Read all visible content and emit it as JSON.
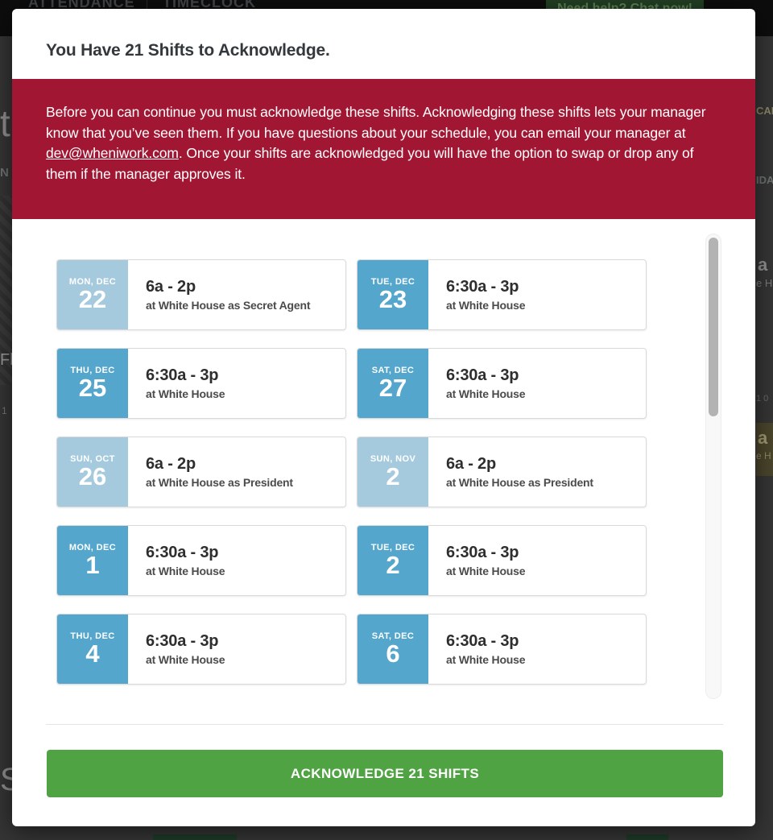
{
  "background": {
    "topbar": {
      "tabs": [
        {
          "label": "ATTENDANCE"
        },
        {
          "label": "TIMECLOCK"
        }
      ],
      "chat_button_label": "Need help? Chat now!",
      "chat_icon": "chat-bubble-icon"
    },
    "fragments": {
      "left_t": "t",
      "left_n": "N",
      "left_fl": "Fl",
      "left_1": "1",
      "left_s": "S",
      "right_cal": "CAL",
      "right_ida": "IDA",
      "right_a1": "a",
      "right_eh1": "e H",
      "right_10": "1 0",
      "right_a2": "a",
      "right_eh2": "e H"
    }
  },
  "modal": {
    "title": "You Have 21 Shifts to Acknowledge.",
    "notice": {
      "text_before_link": "Before you can continue you must acknowledge these shifts. Acknowledging these shifts lets your manager know that you’ve seen them. If you have questions about your schedule, you can email your manager at ",
      "link": "dev@wheniwork.com",
      "text_after_link": ". Once your shifts are acknowledged you will have the option to swap or drop any of them if the manager approves it."
    },
    "shifts": [
      {
        "day": "MON, DEC",
        "date": "22",
        "time": "6a - 2p",
        "location": "at White House as Secret Agent",
        "tone": "light"
      },
      {
        "day": "TUE, DEC",
        "date": "23",
        "time": "6:30a - 3p",
        "location": "at White House",
        "tone": "dark"
      },
      {
        "day": "THU, DEC",
        "date": "25",
        "time": "6:30a - 3p",
        "location": "at White House",
        "tone": "dark"
      },
      {
        "day": "SAT, DEC",
        "date": "27",
        "time": "6:30a - 3p",
        "location": "at White House",
        "tone": "dark"
      },
      {
        "day": "SUN, OCT",
        "date": "26",
        "time": "6a - 2p",
        "location": "at White House as President",
        "tone": "light"
      },
      {
        "day": "SUN, NOV",
        "date": "2",
        "time": "6a - 2p",
        "location": "at White House as President",
        "tone": "light"
      },
      {
        "day": "MON, DEC",
        "date": "1",
        "time": "6:30a - 3p",
        "location": "at White House",
        "tone": "dark"
      },
      {
        "day": "TUE, DEC",
        "date": "2",
        "time": "6:30a - 3p",
        "location": "at White House",
        "tone": "dark"
      },
      {
        "day": "THU, DEC",
        "date": "4",
        "time": "6:30a - 3p",
        "location": "at White House",
        "tone": "dark"
      },
      {
        "day": "SAT, DEC",
        "date": "6",
        "time": "6:30a - 3p",
        "location": "at White House",
        "tone": "dark"
      }
    ],
    "acknowledge_button_label": "ACKNOWLEDGE 21 SHIFTS",
    "colors": {
      "banner_red": "#a11733",
      "date_light_blue": "#a5cade",
      "date_dark_blue": "#54a6cd",
      "button_green": "#50a342"
    }
  }
}
